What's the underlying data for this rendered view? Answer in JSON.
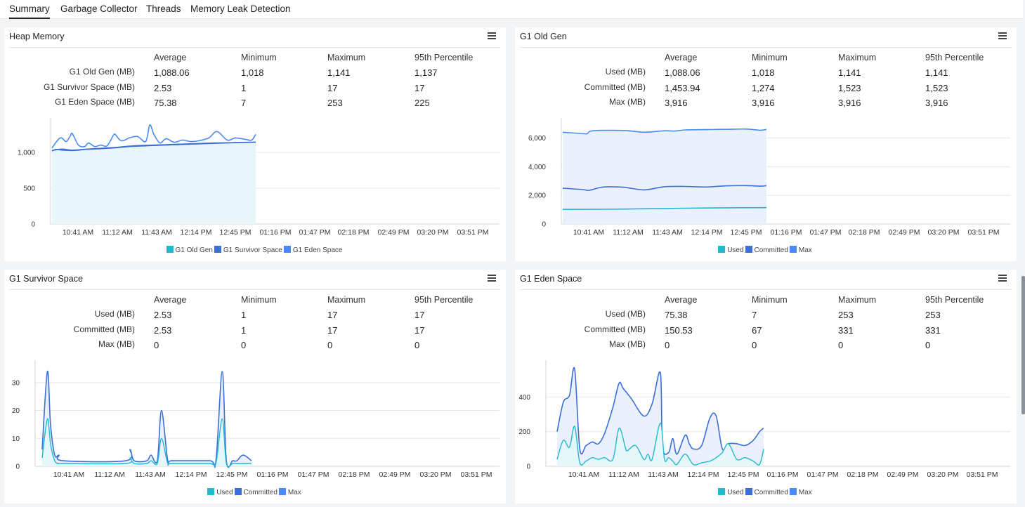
{
  "tabs": [
    {
      "label": "Summary",
      "active": true
    },
    {
      "label": "Garbage Collector",
      "active": false
    },
    {
      "label": "Threads",
      "active": false
    },
    {
      "label": "Memory Leak Detection",
      "active": false
    }
  ],
  "column_headers": [
    "Average",
    "Minimum",
    "Maximum",
    "95th Percentile"
  ],
  "x_ticks": [
    "10:41 AM",
    "11:12 AM",
    "11:43 AM",
    "12:14 PM",
    "12:45 PM",
    "01:16 PM",
    "01:47 PM",
    "02:18 PM",
    "02:49 PM",
    "03:20 PM",
    "03:51 PM"
  ],
  "colors": {
    "teal": "#22b8cf",
    "blue": "#3b6fd8",
    "light_blue": "#4a8af4"
  },
  "panels": [
    {
      "id": "heap",
      "title": "Heap Memory",
      "rows": [
        {
          "label": "G1 Old Gen (MB)",
          "values": [
            "1,088.06",
            "1,018",
            "1,141",
            "1,137"
          ]
        },
        {
          "label": "G1 Survivor Space (MB)",
          "values": [
            "2.53",
            "1",
            "17",
            "17"
          ]
        },
        {
          "label": "G1 Eden Space (MB)",
          "values": [
            "75.38",
            "7",
            "253",
            "225"
          ]
        }
      ],
      "legend": [
        "G1 Old Gen",
        "G1 Survivor Space",
        "G1 Eden Space"
      ]
    },
    {
      "id": "oldgen",
      "title": "G1 Old Gen",
      "rows": [
        {
          "label": "Used (MB)",
          "values": [
            "1,088.06",
            "1,018",
            "1,141",
            "1,141"
          ]
        },
        {
          "label": "Committed (MB)",
          "values": [
            "1,453.94",
            "1,274",
            "1,523",
            "1,523"
          ]
        },
        {
          "label": "Max (MB)",
          "values": [
            "3,916",
            "3,916",
            "3,916",
            "3,916"
          ]
        }
      ],
      "legend": [
        "Used",
        "Committed",
        "Max"
      ]
    },
    {
      "id": "survivor",
      "title": "G1 Survivor Space",
      "rows": [
        {
          "label": "Used (MB)",
          "values": [
            "2.53",
            "1",
            "17",
            "17"
          ]
        },
        {
          "label": "Committed (MB)",
          "values": [
            "2.53",
            "1",
            "17",
            "17"
          ]
        },
        {
          "label": "Max (MB)",
          "values": [
            "0",
            "0",
            "0",
            "0"
          ]
        }
      ],
      "legend": [
        "Used",
        "Committed",
        "Max"
      ]
    },
    {
      "id": "eden",
      "title": "G1 Eden Space",
      "rows": [
        {
          "label": "Used (MB)",
          "values": [
            "75.38",
            "7",
            "253",
            "253"
          ]
        },
        {
          "label": "Committed (MB)",
          "values": [
            "150.53",
            "67",
            "331",
            "331"
          ]
        },
        {
          "label": "Max (MB)",
          "values": [
            "0",
            "0",
            "0",
            "0"
          ]
        }
      ],
      "legend": [
        "Used",
        "Committed",
        "Max"
      ]
    }
  ],
  "chart_data": [
    {
      "type": "area",
      "title": "Heap Memory",
      "y_ticks": [
        "0",
        "500",
        "1,000"
      ],
      "ylim": [
        0,
        1400
      ],
      "x_range": [
        "10:25 AM",
        "12:56 PM"
      ],
      "series": [
        {
          "name": "G1 Old Gen",
          "x": [
            0,
            0.02,
            0.05,
            0.1,
            0.13,
            0.16,
            0.2,
            0.24,
            0.3,
            0.34,
            0.38,
            0.42,
            0.46,
            0.5,
            0.55,
            0.6,
            0.65,
            0.7,
            0.75,
            0.8,
            0.85,
            0.9,
            0.95,
            1.0
          ],
          "values": [
            1018,
            1040,
            1030,
            1025,
            1030,
            1040,
            1045,
            1050,
            1060,
            1070,
            1080,
            1085,
            1090,
            1095,
            1100,
            1105,
            1110,
            1115,
            1120,
            1125,
            1130,
            1135,
            1138,
            1141
          ]
        },
        {
          "name": "G1 Survivor Space",
          "x": [
            0,
            0.05,
            0.1,
            0.2,
            0.3,
            0.4,
            0.5,
            0.6,
            0.7,
            0.8,
            0.9,
            1.0
          ],
          "values": [
            1025,
            1045,
            1030,
            1050,
            1065,
            1090,
            1100,
            1110,
            1120,
            1130,
            1135,
            1142
          ]
        },
        {
          "name": "G1 Eden Space",
          "x": [
            0,
            0.04,
            0.07,
            0.09,
            0.1,
            0.13,
            0.16,
            0.18,
            0.21,
            0.24,
            0.27,
            0.3,
            0.31,
            0.34,
            0.38,
            0.42,
            0.46,
            0.48,
            0.5,
            0.53,
            0.56,
            0.6,
            0.64,
            0.68,
            0.72,
            0.77,
            0.81,
            0.86,
            0.9,
            0.95,
            0.98,
            1.0
          ],
          "values": [
            1060,
            1200,
            1150,
            1230,
            1260,
            1100,
            1080,
            1130,
            1080,
            1100,
            1090,
            1230,
            1250,
            1160,
            1200,
            1220,
            1150,
            1380,
            1250,
            1130,
            1190,
            1140,
            1170,
            1150,
            1160,
            1200,
            1290,
            1170,
            1200,
            1180,
            1170,
            1250
          ]
        }
      ]
    },
    {
      "type": "area",
      "title": "G1 Old Gen",
      "y_ticks": [
        "0",
        "2,000",
        "4,000",
        "6,000"
      ],
      "ylim": [
        0,
        7000
      ],
      "x_range": [
        "10:25 AM",
        "12:56 PM"
      ],
      "series": [
        {
          "name": "Used",
          "x": [
            0,
            0.2,
            0.4,
            0.6,
            0.8,
            1.0
          ],
          "values": [
            1018,
            1030,
            1060,
            1100,
            1130,
            1141
          ]
        },
        {
          "name": "Committed",
          "x": [
            0,
            0.1,
            0.13,
            0.2,
            0.3,
            0.4,
            0.5,
            0.6,
            0.7,
            0.8,
            0.9,
            0.97,
            1.0
          ],
          "values": [
            2500,
            2400,
            2350,
            2580,
            2560,
            2380,
            2600,
            2620,
            2580,
            2660,
            2680,
            2640,
            2680
          ]
        },
        {
          "name": "Max",
          "x": [
            0,
            0.1,
            0.12,
            0.15,
            0.3,
            0.4,
            0.5,
            0.55,
            0.6,
            0.7,
            0.8,
            0.9,
            0.97,
            1.0
          ],
          "values": [
            6400,
            6300,
            6300,
            6500,
            6520,
            6400,
            6500,
            6480,
            6560,
            6580,
            6600,
            6620,
            6540,
            6600
          ]
        }
      ]
    },
    {
      "type": "area",
      "title": "G1 Survivor Space",
      "y_ticks": [
        "0",
        "10",
        "20",
        "30"
      ],
      "ylim": [
        0,
        36
      ],
      "x_range": [
        "10:25 AM",
        "12:56 PM"
      ],
      "series": [
        {
          "name": "Used",
          "x": [
            0,
            0.025,
            0.04,
            0.06,
            0.08,
            0.1,
            0.4,
            0.42,
            0.44,
            0.5,
            0.52,
            0.55,
            0.57,
            0.6,
            0.62,
            0.8,
            0.83,
            0.86,
            0.88,
            0.91,
            0.93,
            0.96,
            1.0
          ],
          "values": [
            3,
            17,
            8,
            2,
            1,
            1,
            1,
            3,
            1,
            1,
            2,
            1,
            10,
            1,
            1,
            1,
            1,
            17,
            1,
            1,
            1,
            1,
            1
          ]
        },
        {
          "name": "Committed",
          "x": [
            0,
            0.025,
            0.04,
            0.06,
            0.08,
            0.1,
            0.4,
            0.42,
            0.44,
            0.5,
            0.52,
            0.55,
            0.57,
            0.6,
            0.62,
            0.8,
            0.83,
            0.86,
            0.88,
            0.91,
            0.93,
            0.96,
            1.0
          ],
          "values": [
            6,
            34,
            15,
            4,
            4,
            2,
            2,
            6,
            2,
            2,
            4,
            2,
            20,
            2,
            2,
            2,
            2,
            34,
            2,
            2,
            2,
            4,
            2
          ]
        },
        {
          "name": "Max",
          "x": [
            0,
            1.0
          ],
          "values": [
            0,
            0
          ]
        }
      ]
    },
    {
      "type": "area",
      "title": "G1 Eden Space",
      "y_ticks": [
        "0",
        "200",
        "400"
      ],
      "ylim": [
        0,
        580
      ],
      "x_range": [
        "10:25 AM",
        "12:56 PM"
      ],
      "series": [
        {
          "name": "Used",
          "x": [
            0,
            0.03,
            0.06,
            0.085,
            0.11,
            0.14,
            0.17,
            0.2,
            0.23,
            0.27,
            0.3,
            0.33,
            0.34,
            0.38,
            0.42,
            0.44,
            0.46,
            0.5,
            0.52,
            0.54,
            0.56,
            0.58,
            0.62,
            0.66,
            0.7,
            0.74,
            0.77,
            0.8,
            0.83,
            0.87,
            0.91,
            0.95,
            0.98,
            1.0
          ],
          "values": [
            40,
            150,
            110,
            230,
            20,
            30,
            50,
            40,
            50,
            40,
            220,
            110,
            90,
            120,
            40,
            70,
            40,
            250,
            40,
            50,
            30,
            10,
            70,
            10,
            20,
            30,
            50,
            80,
            130,
            40,
            50,
            30,
            10,
            100
          ]
        },
        {
          "name": "Committed",
          "x": [
            0,
            0.03,
            0.06,
            0.085,
            0.11,
            0.14,
            0.17,
            0.2,
            0.23,
            0.27,
            0.3,
            0.32,
            0.36,
            0.42,
            0.46,
            0.5,
            0.51,
            0.54,
            0.56,
            0.58,
            0.62,
            0.64,
            0.66,
            0.7,
            0.74,
            0.77,
            0.8,
            0.83,
            0.87,
            0.91,
            0.95,
            0.98,
            1.0
          ],
          "values": [
            200,
            370,
            410,
            560,
            100,
            120,
            140,
            130,
            190,
            340,
            480,
            450,
            390,
            290,
            360,
            540,
            120,
            80,
            160,
            70,
            180,
            130,
            100,
            120,
            280,
            290,
            100,
            130,
            130,
            120,
            150,
            200,
            220
          ]
        },
        {
          "name": "Max",
          "x": [
            0,
            1.0
          ],
          "values": [
            0,
            0
          ]
        }
      ]
    }
  ]
}
